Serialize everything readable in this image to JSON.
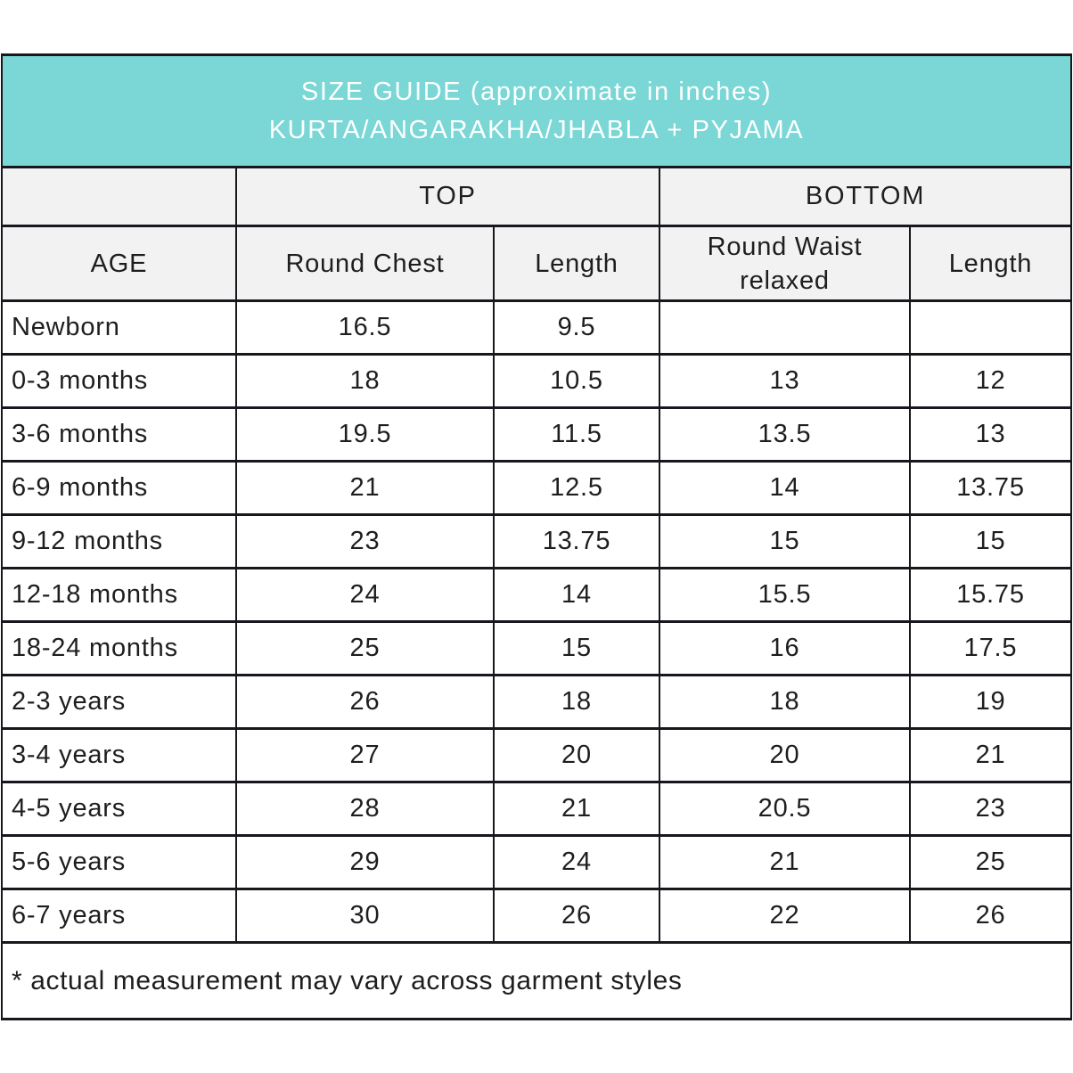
{
  "chart_data": {
    "type": "table",
    "title": "SIZE GUIDE (approximate in inches)",
    "subtitle": "KURTA/ANGARAKHA/JHABLA + PYJAMA",
    "column_groups": {
      "top": "TOP",
      "bottom": "BOTTOM"
    },
    "columns": [
      "AGE",
      "Round Chest",
      "Length",
      "Round Waist relaxed",
      "Length"
    ],
    "rows": [
      [
        "Newborn",
        "16.5",
        "9.5",
        "",
        ""
      ],
      [
        "0-3 months",
        "18",
        "10.5",
        "13",
        "12"
      ],
      [
        "3-6 months",
        "19.5",
        "11.5",
        "13.5",
        "13"
      ],
      [
        "6-9 months",
        "21",
        "12.5",
        "14",
        "13.75"
      ],
      [
        "9-12 months",
        "23",
        "13.75",
        "15",
        "15"
      ],
      [
        "12-18 months",
        "24",
        "14",
        "15.5",
        "15.75"
      ],
      [
        "18-24 months",
        "25",
        "15",
        "16",
        "17.5"
      ],
      [
        "2-3 years",
        "26",
        "18",
        "18",
        "19"
      ],
      [
        "3-4 years",
        "27",
        "20",
        "20",
        "21"
      ],
      [
        "4-5 years",
        "28",
        "21",
        "20.5",
        "23"
      ],
      [
        "5-6 years",
        "29",
        "24",
        "21",
        "25"
      ],
      [
        "6-7 years",
        "30",
        "26",
        "22",
        "26"
      ]
    ],
    "footnote": "* actual measurement may vary across garment styles",
    "layout_hints": {
      "units": "inches"
    }
  },
  "colors": {
    "title_band_bg": "#7ad7d6",
    "title_text": "#ffffff",
    "header_bg": "#f2f2f2",
    "border": "#17171d",
    "body_text": "#1e1e1e"
  }
}
